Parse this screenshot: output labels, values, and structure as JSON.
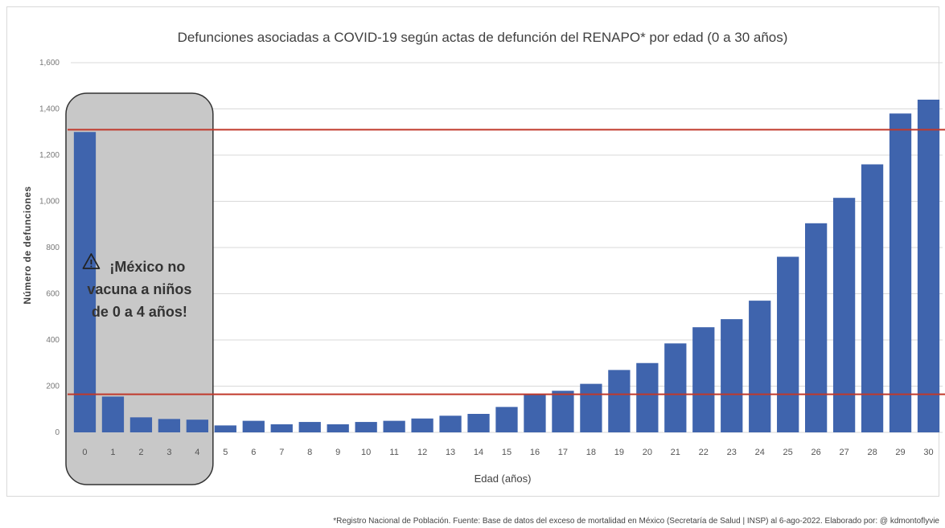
{
  "chart_data": {
    "type": "bar",
    "title": "Defunciones asociadas a COVID-19 según actas de defunción del RENAPO* por edad (0 a 30 años)",
    "xlabel": "Edad (años)",
    "ylabel": "Número de defunciones",
    "categories": [
      "0",
      "1",
      "2",
      "3",
      "4",
      "5",
      "6",
      "7",
      "8",
      "9",
      "10",
      "11",
      "12",
      "13",
      "14",
      "15",
      "16",
      "17",
      "18",
      "19",
      "20",
      "21",
      "22",
      "23",
      "24",
      "25",
      "26",
      "27",
      "28",
      "29",
      "30"
    ],
    "values": [
      1300,
      155,
      65,
      58,
      55,
      30,
      50,
      35,
      45,
      35,
      45,
      50,
      60,
      72,
      80,
      110,
      165,
      180,
      210,
      270,
      300,
      385,
      455,
      490,
      570,
      760,
      905,
      1015,
      1160,
      1380,
      1440
    ],
    "ylim": [
      0,
      1600
    ],
    "yticks": [
      0,
      200,
      400,
      600,
      800,
      1000,
      1200,
      1400,
      1600
    ],
    "ytick_labels": [
      "0",
      "200",
      "400",
      "600",
      "800",
      "1,000",
      "1,200",
      "1,400",
      "1,600"
    ],
    "bar_color": "#3F64AD",
    "grid": true,
    "reference_lines": [
      {
        "value": 1310,
        "color": "#C0392B"
      },
      {
        "value": 165,
        "color": "#C0392B"
      }
    ],
    "highlight": {
      "from_category": "0",
      "to_category": "4",
      "fill": "#C8C8C8",
      "border": "#333333",
      "text_lines": [
        "¡México no",
        "vacuna a niños",
        "de 0 a 4 años!"
      ]
    },
    "footnote": "*Registro Nacional de Población. Fuente: Base de datos del exceso de mortalidad en México (Secretaría de Salud | INSP) al 6-ago-2022. Elaborado por: @ kdmontoflyvie"
  }
}
